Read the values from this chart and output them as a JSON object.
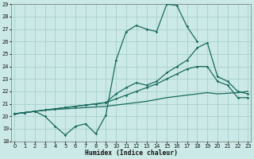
{
  "xlabel": "Humidex (Indice chaleur)",
  "bg_color": "#cbe9e6",
  "grid_color": "#a8d0cc",
  "line_color": "#1a6b5e",
  "xmin": 0,
  "xmax": 23,
  "ymin": 18,
  "ymax": 29,
  "s1_x": [
    0,
    1,
    2,
    3,
    4,
    5,
    6,
    7,
    8,
    9,
    10,
    11,
    12,
    13,
    14,
    15,
    16,
    17,
    18
  ],
  "s1_y": [
    20.2,
    20.3,
    20.4,
    20.0,
    19.2,
    18.5,
    19.2,
    19.4,
    18.6,
    20.1,
    24.5,
    26.8,
    27.3,
    27.0,
    26.8,
    29.0,
    28.9,
    27.2,
    26.0
  ],
  "s2_x": [
    0,
    1,
    2,
    3,
    4,
    5,
    6,
    7,
    8,
    9,
    10,
    11,
    12,
    13,
    14,
    15,
    16,
    17,
    18,
    19,
    20,
    21,
    22,
    23
  ],
  "s2_y": [
    20.2,
    20.3,
    20.4,
    20.5,
    20.6,
    20.7,
    20.8,
    20.9,
    21.0,
    21.1,
    21.8,
    22.3,
    22.7,
    22.5,
    22.8,
    23.5,
    24.0,
    24.5,
    25.5,
    25.9,
    23.2,
    22.8,
    22.0,
    21.8
  ],
  "s3_x": [
    0,
    1,
    2,
    3,
    4,
    5,
    6,
    7,
    8,
    9,
    10,
    11,
    12,
    13,
    14,
    15,
    16,
    17,
    18,
    19,
    20,
    21,
    22,
    23
  ],
  "s3_y": [
    20.2,
    20.3,
    20.4,
    20.5,
    20.6,
    20.7,
    20.8,
    20.9,
    21.0,
    21.1,
    21.4,
    21.7,
    22.0,
    22.3,
    22.6,
    23.0,
    23.4,
    23.8,
    24.0,
    24.0,
    22.8,
    22.5,
    21.5,
    21.5
  ],
  "s4_x": [
    0,
    1,
    2,
    3,
    4,
    5,
    6,
    7,
    8,
    9,
    10,
    11,
    12,
    13,
    14,
    15,
    16,
    17,
    18,
    19,
    20,
    21,
    22,
    23
  ],
  "s4_y": [
    20.2,
    20.3,
    20.4,
    20.5,
    20.55,
    20.6,
    20.65,
    20.7,
    20.75,
    20.8,
    20.9,
    21.0,
    21.1,
    21.2,
    21.35,
    21.5,
    21.6,
    21.7,
    21.8,
    21.9,
    21.8,
    21.85,
    21.9,
    22.0
  ]
}
